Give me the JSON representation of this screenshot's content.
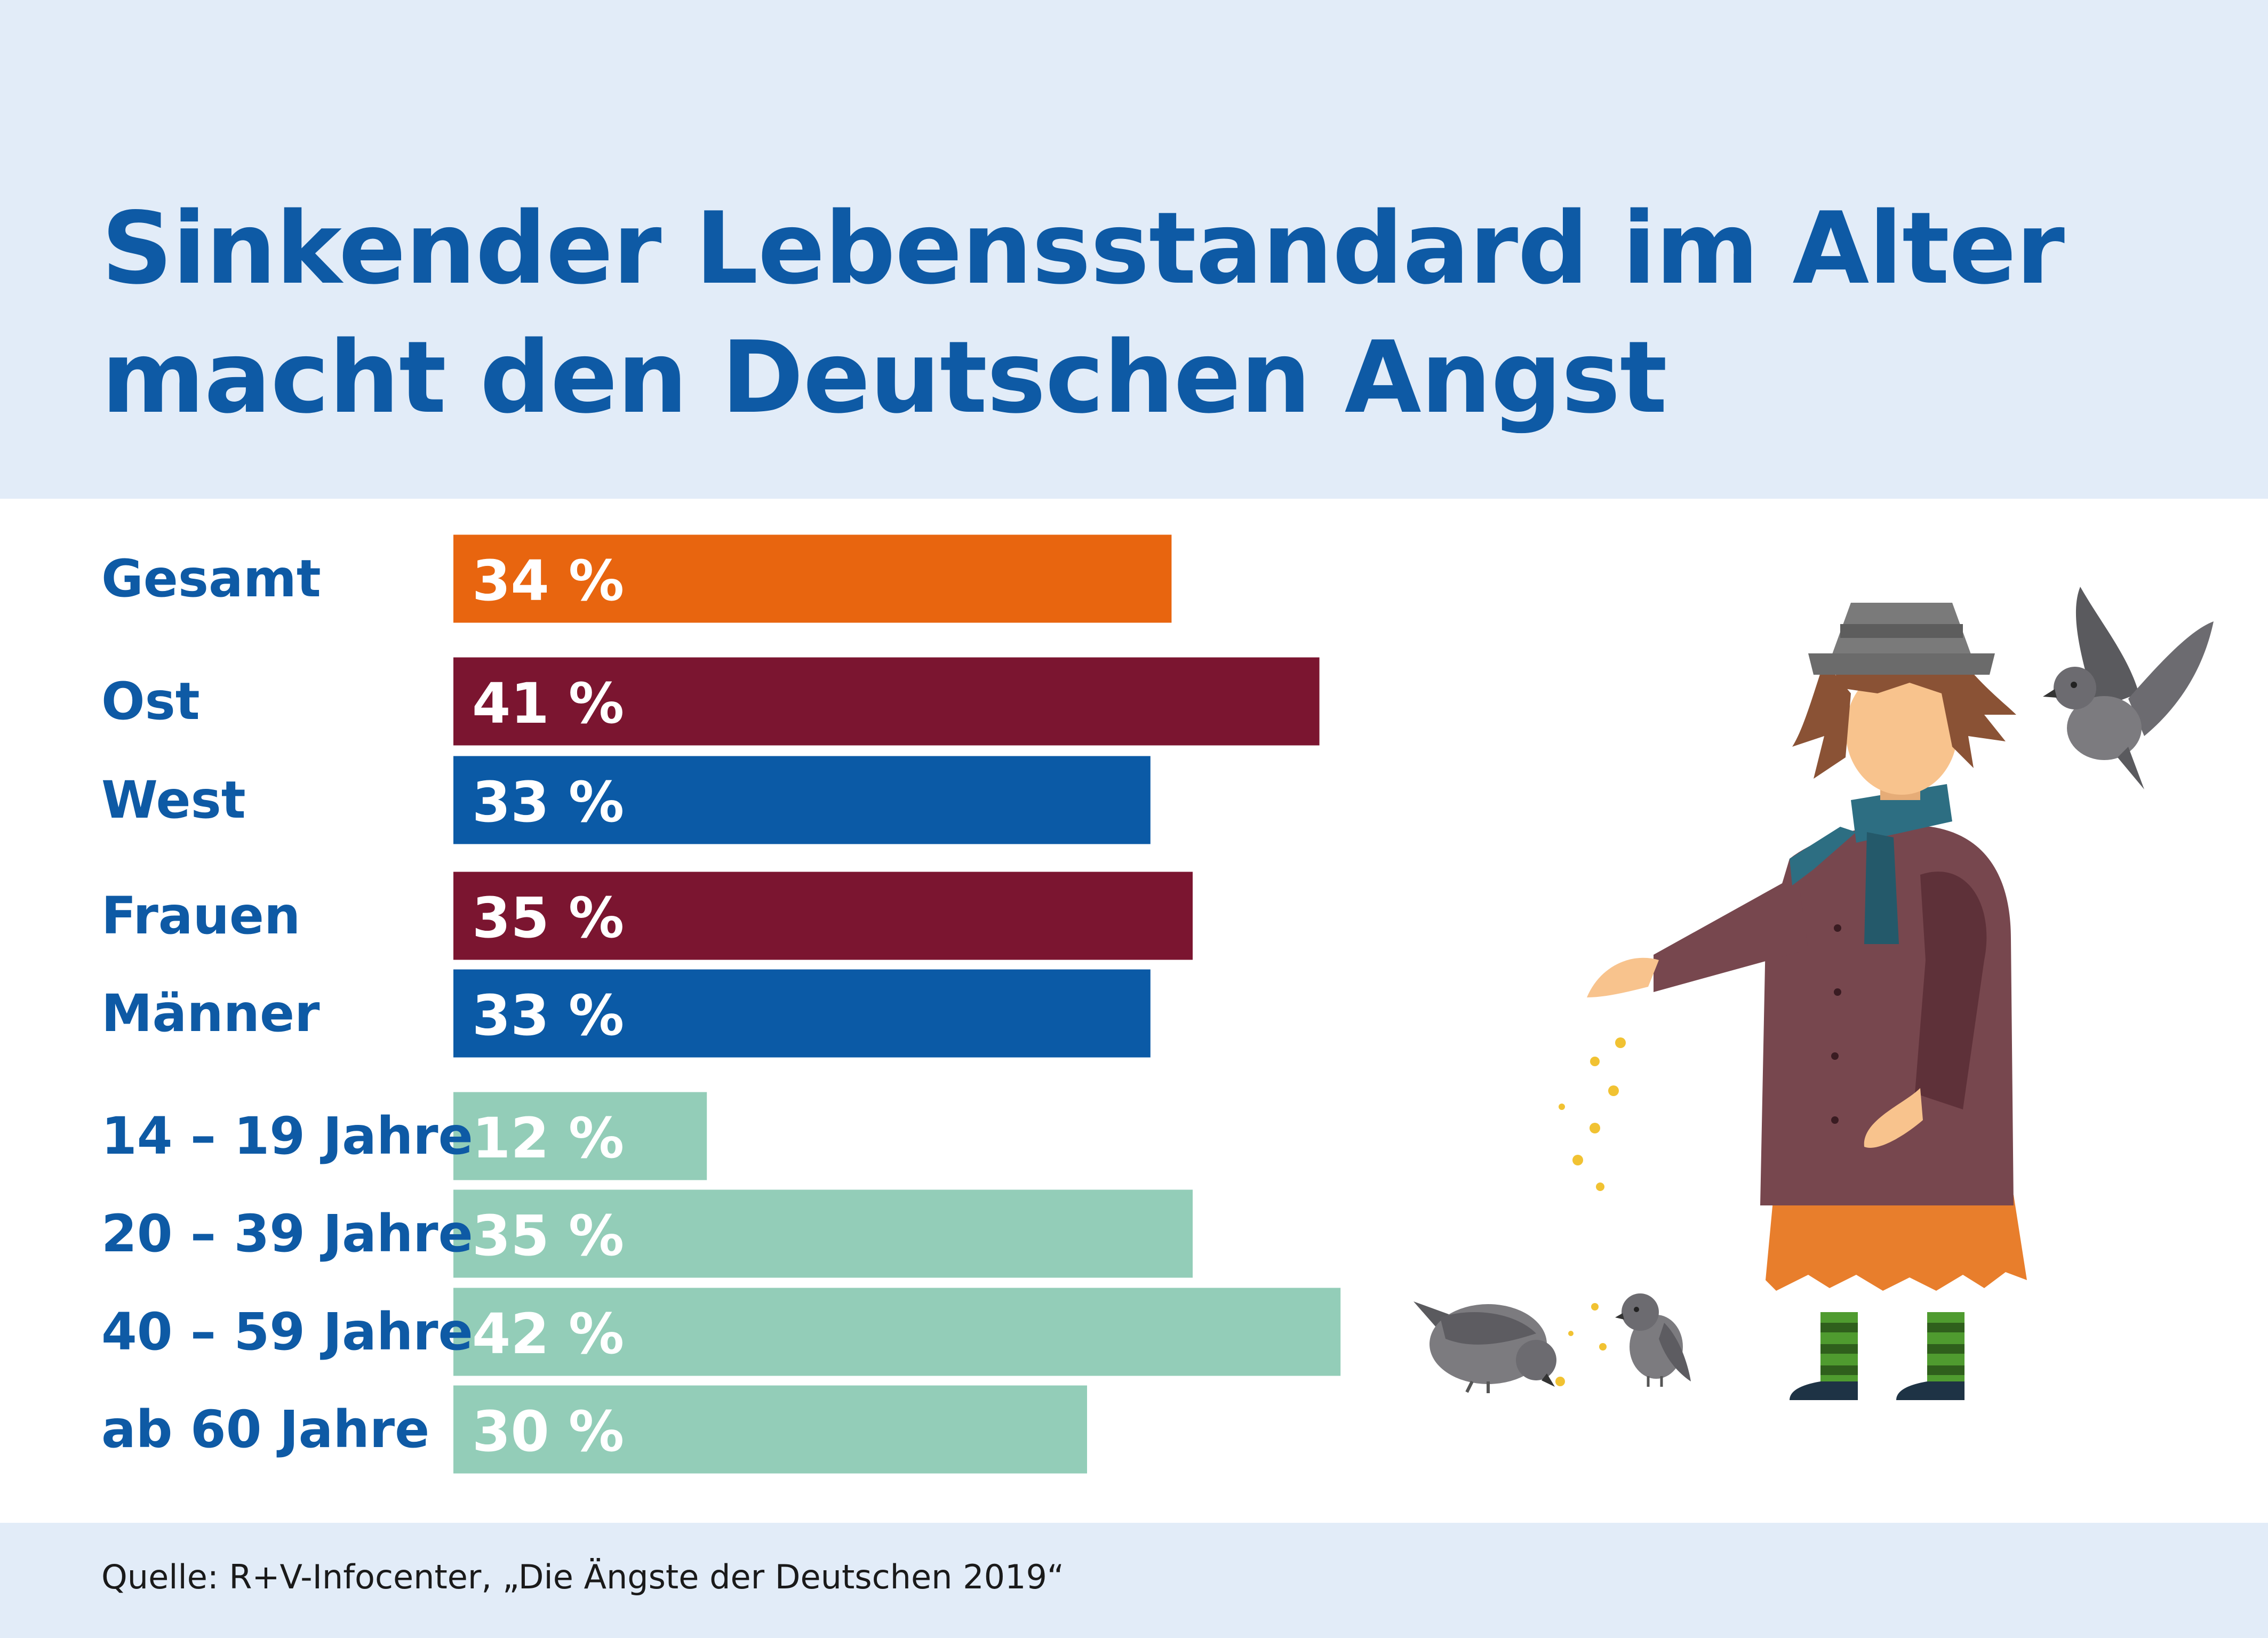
{
  "title": [
    "Sinkender Lebensstandard im Alter",
    "macht den Deutschen Angst"
  ],
  "source": "Quelle: R+V-Infocenter, „Die Ängste der Deutschen 2019“",
  "chart_data": {
    "type": "bar",
    "orientation": "horizontal",
    "categories": [
      "Gesamt",
      "Ost",
      "West",
      "Frauen",
      "Männer",
      "14 – 19 Jahre",
      "20 – 39 Jahre",
      "40 – 59 Jahre",
      "ab 60 Jahre"
    ],
    "values": [
      34,
      41,
      33,
      35,
      33,
      12,
      35,
      42,
      30
    ],
    "value_labels": [
      "34 %",
      "41 %",
      "33 %",
      "35 %",
      "33 %",
      "12 %",
      "35 %",
      "42 %",
      "30 %"
    ],
    "unit": "%",
    "colors": [
      "#e8650f",
      "#7b1530",
      "#0b5aa6",
      "#7b1530",
      "#0b5aa6",
      "#93cdb8",
      "#93cdb8",
      "#93cdb8",
      "#93cdb8"
    ],
    "label_color": "#0e5aa5",
    "value_label_color": "#ffffff",
    "xlim": [
      0,
      42
    ],
    "grid": false,
    "legend": "none"
  },
  "illustration": {
    "icons": [
      "person-feeding-birds-icon",
      "pigeon-flying-icon",
      "pigeon-pecking-icon",
      "pigeon-standing-icon",
      "bird-seeds-icon"
    ],
    "colors": {
      "coat": "#77474e",
      "coat_shadow": "#5e3139",
      "hat": "#7a7a7a",
      "hair": "#8a5235",
      "skin": "#f8c38d",
      "scarf": "#2d6e82",
      "skirt": "#e87e2c",
      "socks": "#4f9b2f",
      "boots": "#1e3345",
      "pigeon": "#7c7b7f",
      "seeds": "#f1c232"
    }
  }
}
